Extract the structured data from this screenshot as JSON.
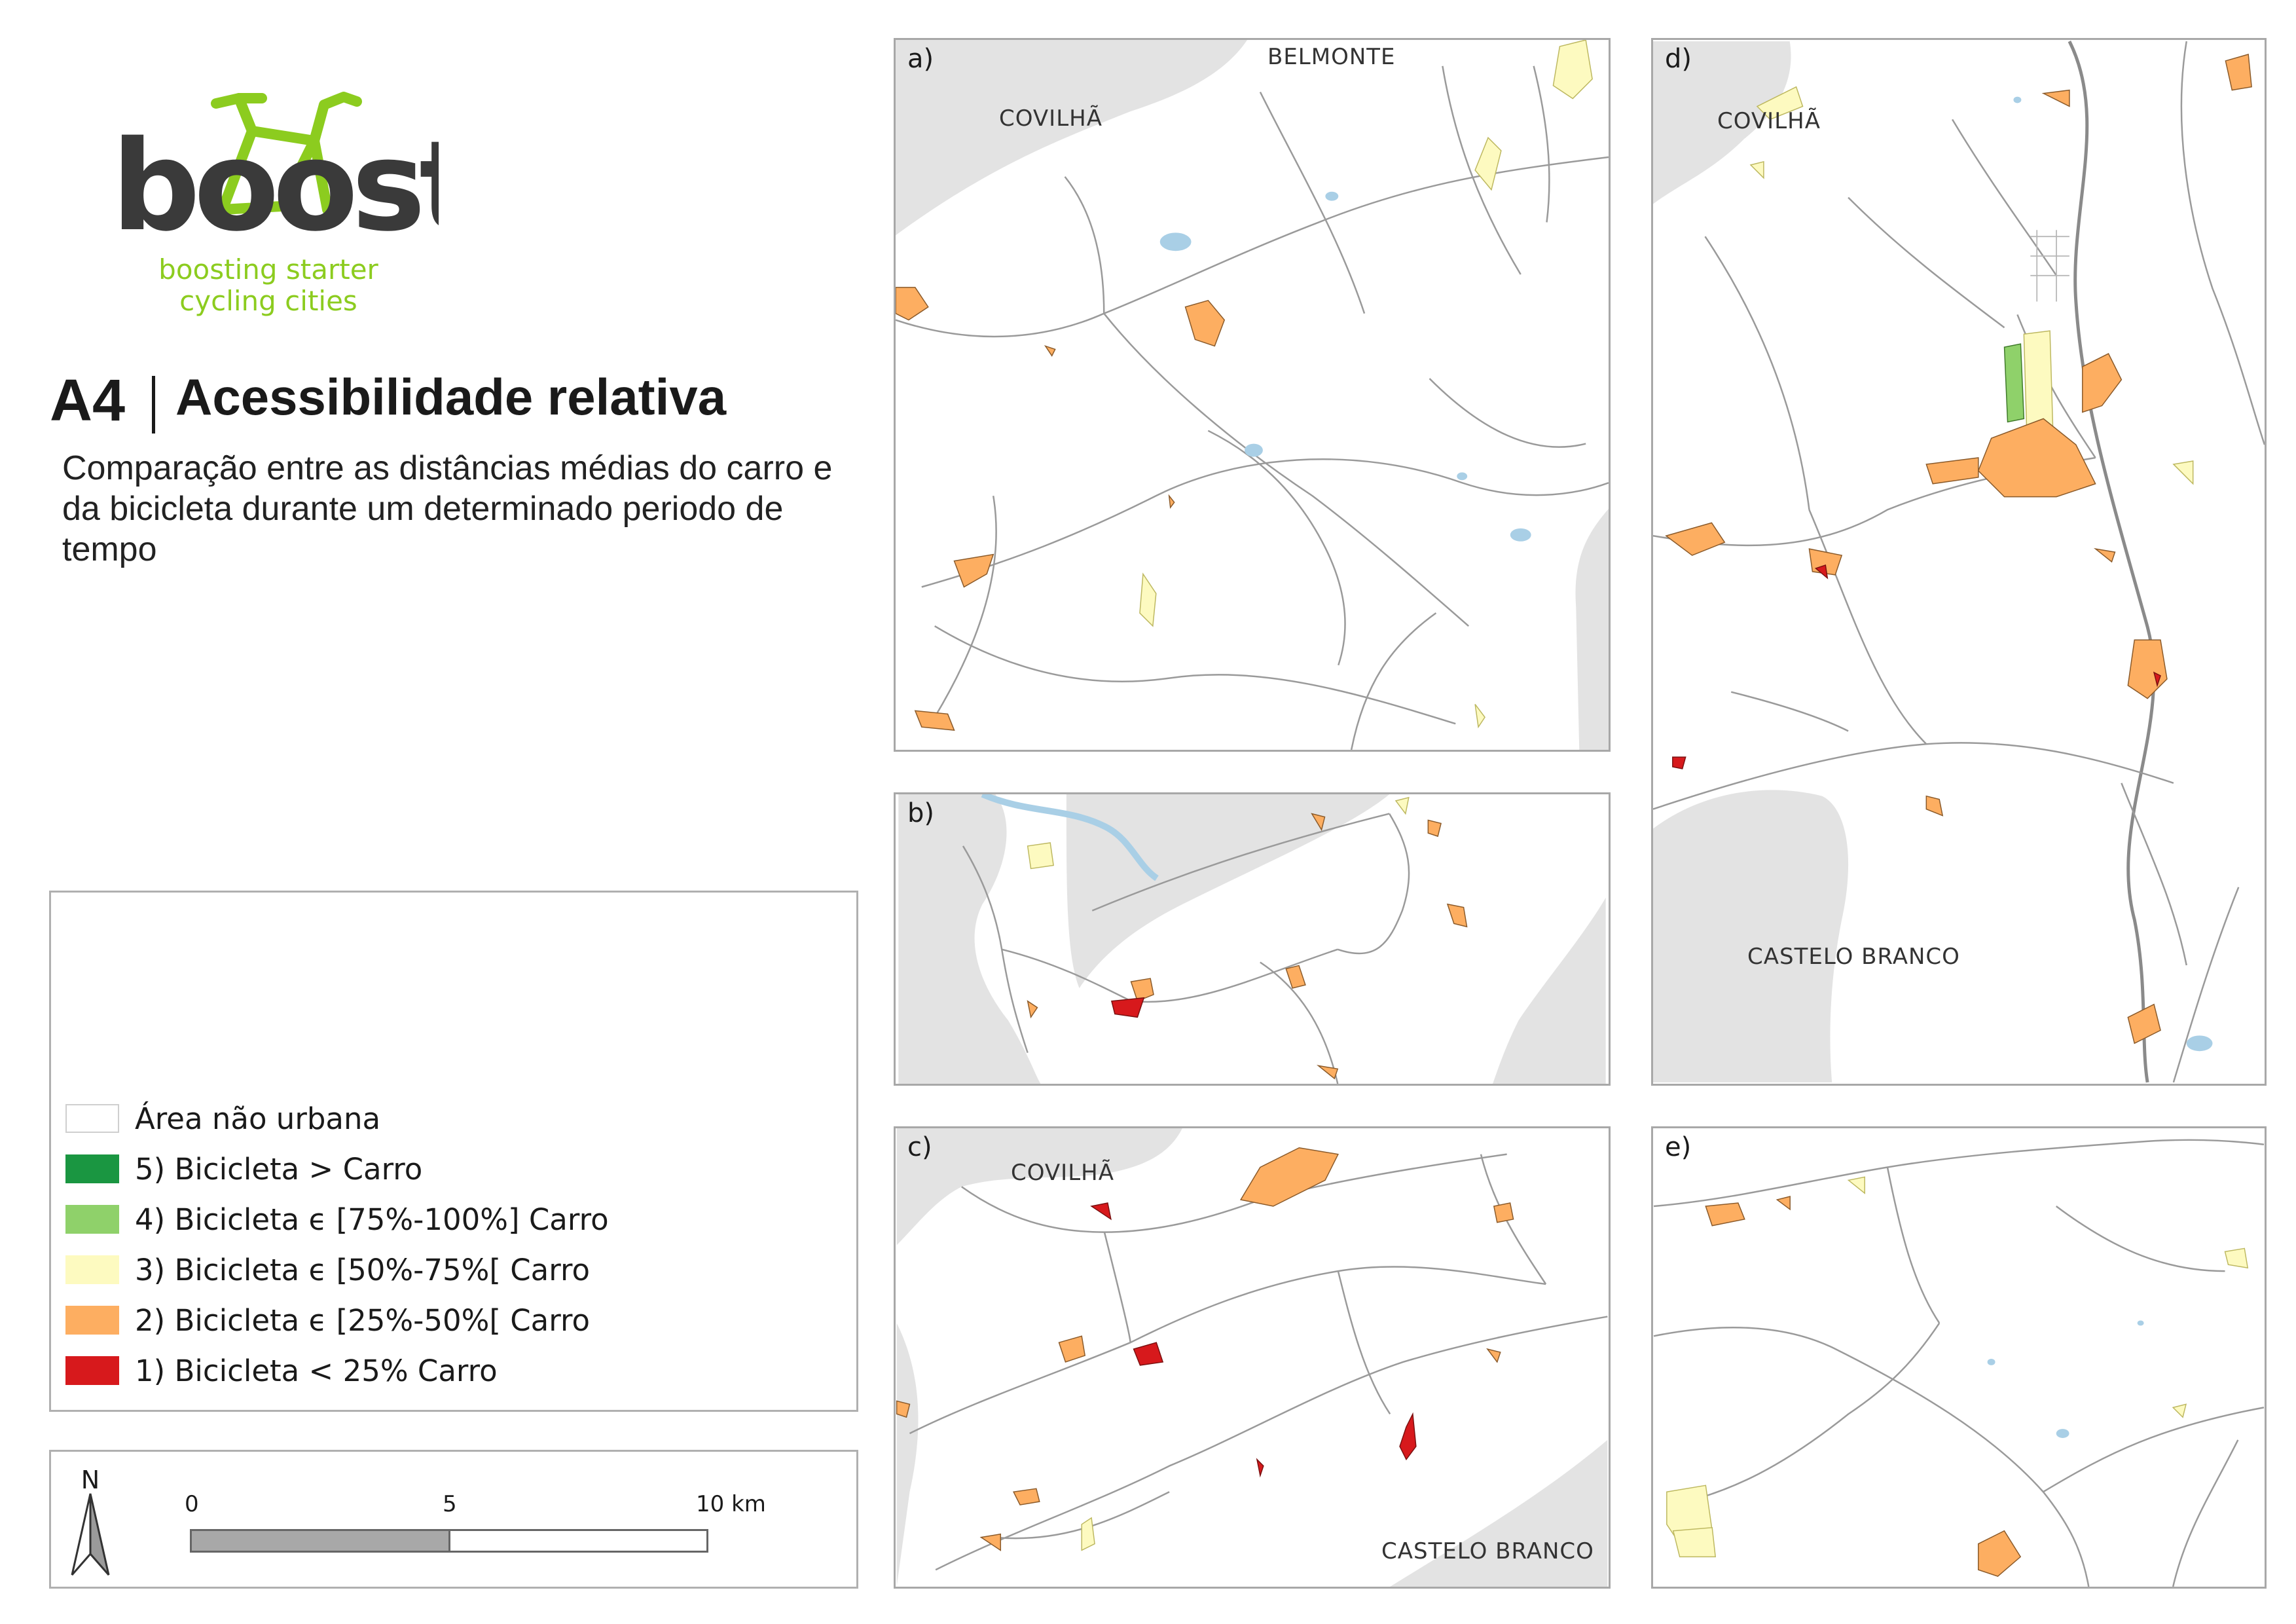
{
  "logo": {
    "wordmark": "boost",
    "tagline_line1": "boosting starter",
    "tagline_line2": "cycling cities",
    "color_accent": "#8ccc1f",
    "color_dark": "#3a3a3a"
  },
  "header": {
    "sheet_code": "A4",
    "title": "Acessibilidade relativa",
    "subtitle": "Comparação entre as distâncias médias do carro e da bicicleta durante um determinado periodo de tempo"
  },
  "legend": {
    "items": [
      {
        "label": "Área não urbana",
        "color": "#ffffff"
      },
      {
        "label": "5)  Bicicleta > Carro",
        "color": "#1a9641"
      },
      {
        "label": "4)  Bicicleta ϵ [75%-100%] Carro",
        "color": "#8fd16a"
      },
      {
        "label": "3)  Bicicleta ϵ [50%-75%[ Carro",
        "color": "#fdfac0"
      },
      {
        "label": "2)  Bicicleta ϵ [25%-50%[ Carro",
        "color": "#fdae61"
      },
      {
        "label": "1)  Bicicleta < 25% Carro",
        "color": "#d7191c"
      }
    ]
  },
  "scale": {
    "north": "N",
    "tick_0": "0",
    "tick_5": "5",
    "tick_10": "10 km"
  },
  "colors": {
    "outside_area": "#e3e3e3",
    "road": "#9a9a9a",
    "water": "#a9cfe6",
    "panel_border": "#a8a8a8"
  },
  "panels": {
    "a": {
      "letter": "a)",
      "labels": [
        "BELMONTE",
        "COVILHÃ"
      ]
    },
    "b": {
      "letter": "b)",
      "labels": []
    },
    "c": {
      "letter": "c)",
      "labels": [
        "COVILHÃ",
        "CASTELO BRANCO"
      ]
    },
    "d": {
      "letter": "d)",
      "labels": [
        "COVILHÃ",
        "CASTELO BRANCO"
      ]
    },
    "e": {
      "letter": "e)",
      "labels": []
    }
  }
}
